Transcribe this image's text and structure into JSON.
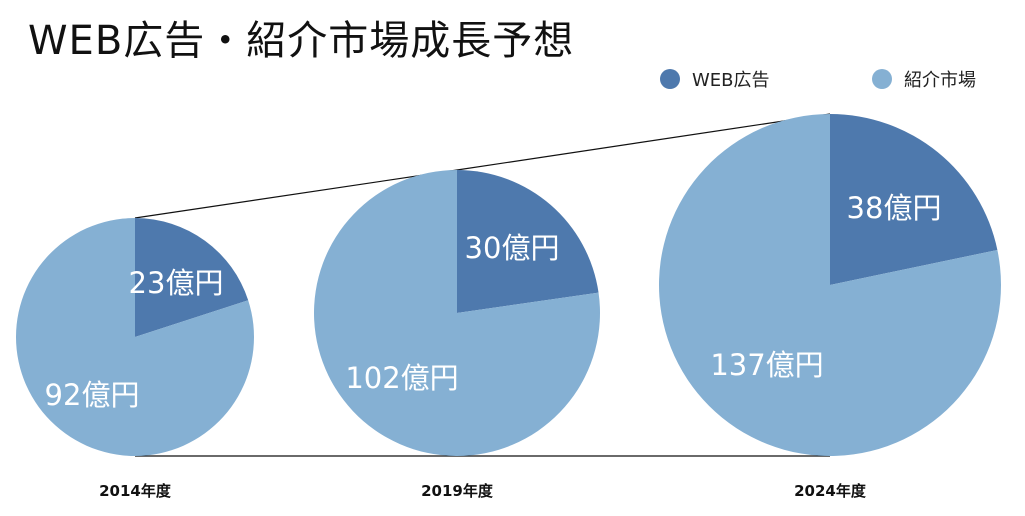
{
  "title": "WEB広告・紹介市場成長予想",
  "legend": [
    {
      "label": "WEB広告",
      "color": "#4e79ad"
    },
    {
      "label": "紹介市場",
      "color": "#85b0d3"
    }
  ],
  "chart_data": {
    "type": "pie",
    "title": "WEB広告・紹介市場成長予想",
    "series_names": [
      "WEB広告",
      "紹介市場"
    ],
    "colors": [
      "#4e79ad",
      "#85b0d3"
    ],
    "unit": "億円",
    "pies": [
      {
        "label": "2014年度",
        "values": [
          23,
          92
        ],
        "value_labels": [
          "23億円",
          "92億円"
        ]
      },
      {
        "label": "2019年度",
        "values": [
          30,
          102
        ],
        "value_labels": [
          "30億円",
          "102億円"
        ]
      },
      {
        "label": "2024年度",
        "values": [
          38,
          137
        ],
        "value_labels": [
          "38億円",
          "137億円"
        ]
      }
    ]
  }
}
